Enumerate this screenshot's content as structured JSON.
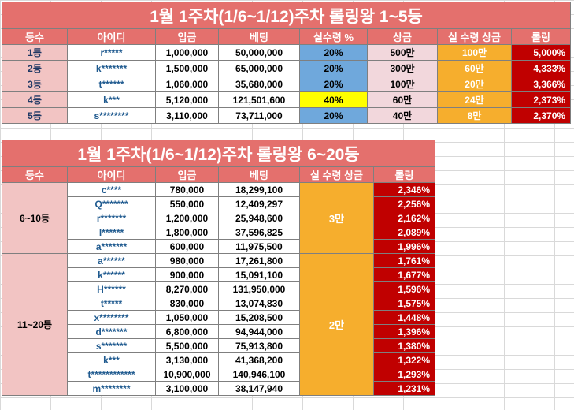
{
  "table1": {
    "title": "1월 1주차(1/6~1/12)주차 롤링왕 1~5등",
    "headers": [
      "등수",
      "아이디",
      "입금",
      "베팅",
      "실수령 %",
      "상금",
      "실 수령 상금",
      "롤링"
    ],
    "rows": [
      {
        "rank": "1등",
        "id": "r*****",
        "deposit": "1,000,000",
        "bet": "50,000,000",
        "pct": "20%",
        "prize": "500만",
        "payout": "100만",
        "rolling": "5,000%"
      },
      {
        "rank": "2등",
        "id": "k*******",
        "deposit": "1,500,000",
        "bet": "65,000,000",
        "pct": "20%",
        "prize": "300만",
        "payout": "60만",
        "rolling": "4,333%"
      },
      {
        "rank": "3등",
        "id": "t******",
        "deposit": "1,060,000",
        "bet": "35,680,000",
        "pct": "20%",
        "prize": "100만",
        "payout": "20만",
        "rolling": "3,366%"
      },
      {
        "rank": "4등",
        "id": "k***",
        "deposit": "5,120,000",
        "bet": "121,501,600",
        "pct": "40%",
        "prize": "60만",
        "payout": "24만",
        "rolling": "2,373%"
      },
      {
        "rank": "5등",
        "id": "s********",
        "deposit": "3,110,000",
        "bet": "73,711,000",
        "pct": "20%",
        "prize": "40만",
        "payout": "8만",
        "rolling": "2,370%"
      }
    ],
    "colors": {
      "header": "#e4706d",
      "blue": "#6fa8dc",
      "yellow": "#ffff00",
      "orange": "#f6ae2d",
      "red": "#c00000",
      "pink": "#f2d7dc"
    }
  },
  "table2": {
    "title": "1월 1주차(1/6~1/12)주차 롤링왕 6~20등",
    "headers": [
      "등수",
      "아이디",
      "입금",
      "베팅",
      "실 수령 상금",
      "롤링"
    ],
    "group1": {
      "rank": "6~10등",
      "payout": "3만",
      "rows": [
        {
          "id": "c****",
          "deposit": "780,000",
          "bet": "18,299,100",
          "rolling": "2,346%"
        },
        {
          "id": "Q*******",
          "deposit": "550,000",
          "bet": "12,409,297",
          "rolling": "2,256%"
        },
        {
          "id": "r*******",
          "deposit": "1,200,000",
          "bet": "25,948,600",
          "rolling": "2,162%"
        },
        {
          "id": "l******",
          "deposit": "1,800,000",
          "bet": "37,596,825",
          "rolling": "2,089%"
        },
        {
          "id": "a*******",
          "deposit": "600,000",
          "bet": "11,975,500",
          "rolling": "1,996%"
        }
      ]
    },
    "group2": {
      "rank": "11~20등",
      "payout": "2만",
      "rows": [
        {
          "id": "a******",
          "deposit": "980,000",
          "bet": "17,261,800",
          "rolling": "1,761%"
        },
        {
          "id": "k******",
          "deposit": "900,000",
          "bet": "15,091,100",
          "rolling": "1,677%"
        },
        {
          "id": "H******",
          "deposit": "8,270,000",
          "bet": "131,950,000",
          "rolling": "1,596%"
        },
        {
          "id": "t*****",
          "deposit": "830,000",
          "bet": "13,074,830",
          "rolling": "1,575%"
        },
        {
          "id": "x********",
          "deposit": "1,050,000",
          "bet": "15,208,500",
          "rolling": "1,448%"
        },
        {
          "id": "d*******",
          "deposit": "6,800,000",
          "bet": "94,944,000",
          "rolling": "1,396%"
        },
        {
          "id": "s*******",
          "deposit": "5,500,000",
          "bet": "75,913,800",
          "rolling": "1,380%"
        },
        {
          "id": "k***",
          "deposit": "3,130,000",
          "bet": "41,368,200",
          "rolling": "1,322%"
        },
        {
          "id": "t************",
          "deposit": "10,900,000",
          "bet": "140,946,100",
          "rolling": "1,293%"
        },
        {
          "id": "m********",
          "deposit": "3,100,000",
          "bet": "38,147,940",
          "rolling": "1,231%"
        }
      ]
    }
  }
}
